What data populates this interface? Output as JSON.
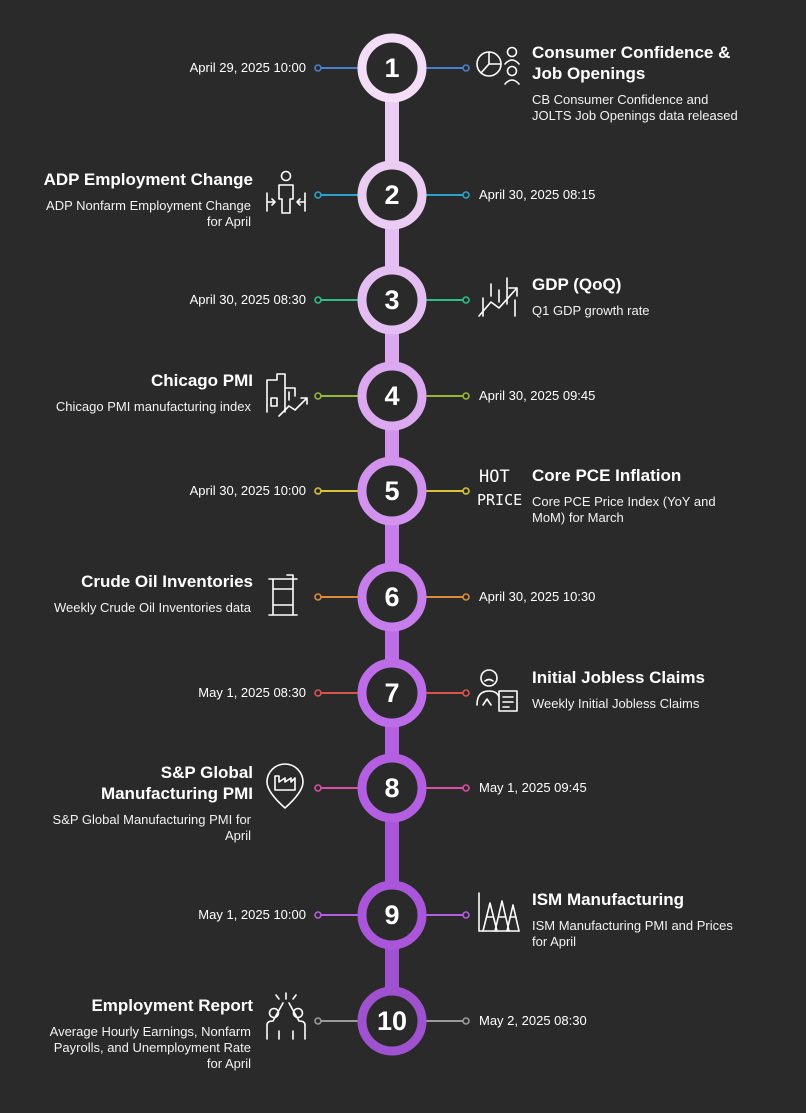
{
  "events": [
    {
      "number": "1",
      "date": "April 29, 2025 10:00",
      "title": "Consumer Confidence & Job Openings",
      "description": "CB Consumer Confidence and JOLTS Job Openings data released",
      "icon": "pie-chart-people-icon",
      "color": "#4a7fd0",
      "ring": "#f3ddf7",
      "side": "right"
    },
    {
      "number": "2",
      "date": "April 30, 2025 08:15",
      "title": "ADP Employment Change",
      "description": "ADP Nonfarm Employment Change for April",
      "icon": "person-arrows-icon",
      "color": "#29a3c9",
      "ring": "#ebcdf4",
      "side": "left"
    },
    {
      "number": "3",
      "date": "April 30, 2025 08:30",
      "title": "GDP (QoQ)",
      "description": "Q1 GDP growth rate",
      "icon": "growth-chart-icon",
      "color": "#2fbf86",
      "ring": "#e4bdf2",
      "side": "right"
    },
    {
      "number": "4",
      "date": "April 30, 2025 09:45",
      "title": "Chicago PMI",
      "description": "Chicago PMI manufacturing index",
      "icon": "factory-chart-icon",
      "color": "#93b83a",
      "ring": "#dca8f0",
      "side": "left"
    },
    {
      "number": "5",
      "date": "April 30, 2025 10:00",
      "title": "Core PCE Inflation",
      "description": "Core PCE Price Index (YoY and MoM) for March",
      "icon": "hot-price-icon",
      "color": "#d8c43a",
      "ring": "#d193ee",
      "side": "right"
    },
    {
      "number": "6",
      "date": "April 30, 2025 10:30",
      "title": "Crude Oil Inventories",
      "description": "Weekly Crude Oil Inventories data",
      "icon": "oil-barrel-icon",
      "color": "#de8a3a",
      "ring": "#c77eec",
      "side": "left"
    },
    {
      "number": "7",
      "date": "May 1, 2025 08:30",
      "title": "Initial Jobless Claims",
      "description": "Weekly Initial Jobless Claims",
      "icon": "jobless-person-icon",
      "color": "#d9534f",
      "ring": "#bd6de8",
      "side": "right"
    },
    {
      "number": "8",
      "date": "May 1, 2025 09:45",
      "title": "S&P Global Manufacturing PMI",
      "description": "S&P Global Manufacturing PMI for April",
      "icon": "factory-pin-icon",
      "color": "#d94fa3",
      "ring": "#b45ee2",
      "side": "left"
    },
    {
      "number": "9",
      "date": "May 1, 2025 10:00",
      "title": "ISM Manufacturing",
      "description": "ISM Manufacturing PMI and Prices for April",
      "icon": "ism-chart-icon",
      "color": "#b45ee2",
      "ring": "#a956db",
      "side": "right"
    },
    {
      "number": "10",
      "date": "May 2, 2025 08:30",
      "title": "Employment Report",
      "description": "Average Hourly Earnings, Nonfarm Payrolls, and Unemployment Rate for April",
      "icon": "high-five-icon",
      "color": "#9a9a9a",
      "ring": "#9f52cf",
      "side": "left"
    }
  ]
}
